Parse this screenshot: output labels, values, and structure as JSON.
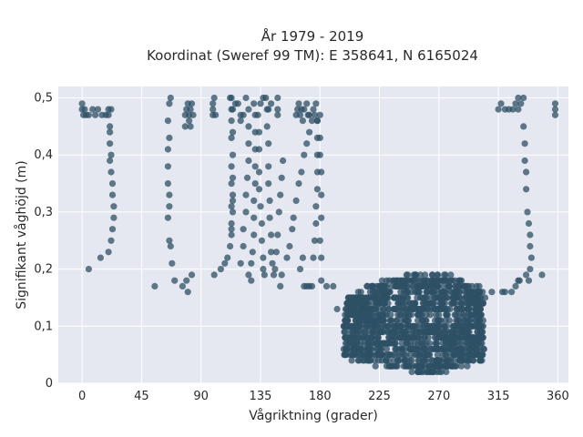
{
  "chart_data": {
    "type": "scatter",
    "title_line1": "År 1979 - 2019",
    "title_line2": "Koordinat (Sweref 99 TM): E 358641, N 6165024",
    "xlabel": "Vågriktning (grader)",
    "ylabel": "Signifikant våghöjd (m)",
    "xlim": [
      -18,
      368
    ],
    "ylim": [
      0,
      0.52
    ],
    "x_ticks": [
      0,
      45,
      90,
      135,
      180,
      225,
      270,
      315,
      360
    ],
    "x_tick_labels": [
      "0",
      "45",
      "90",
      "135",
      "180",
      "225",
      "270",
      "315",
      "360"
    ],
    "y_ticks": [
      0,
      0.1,
      0.2,
      0.3,
      0.4,
      0.5
    ],
    "y_tick_labels": [
      "0",
      "0,1",
      "0,2",
      "0,3",
      "0,4",
      "0,5"
    ],
    "grid": true,
    "legend": "none",
    "colors": {
      "marker": "#2e5066",
      "plot_background": "#e5e8f0",
      "grid": "#ffffff"
    },
    "series": [
      {
        "points": [
          [
            0,
            0.49
          ],
          [
            0,
            0.48
          ],
          [
            1,
            0.47
          ],
          [
            2,
            0.48
          ],
          [
            3,
            0.47
          ],
          [
            5,
            0.47
          ],
          [
            8,
            0.48
          ],
          [
            10,
            0.47
          ],
          [
            12,
            0.48
          ],
          [
            15,
            0.47
          ],
          [
            18,
            0.47
          ],
          [
            20,
            0.48
          ],
          [
            22,
            0.48
          ],
          [
            20,
            0.47
          ],
          [
            21,
            0.45
          ],
          [
            21,
            0.44
          ],
          [
            21,
            0.42
          ],
          [
            22,
            0.4
          ],
          [
            21,
            0.39
          ],
          [
            22,
            0.37
          ],
          [
            23,
            0.35
          ],
          [
            23,
            0.33
          ],
          [
            24,
            0.31
          ],
          [
            24,
            0.29
          ],
          [
            23,
            0.27
          ],
          [
            22,
            0.25
          ],
          [
            20,
            0.23
          ],
          [
            14,
            0.22
          ],
          [
            5,
            0.2
          ],
          [
            55,
            0.17
          ],
          [
            65,
            0.29
          ],
          [
            66,
            0.31
          ],
          [
            66,
            0.33
          ],
          [
            65,
            0.35
          ],
          [
            65,
            0.38
          ],
          [
            65,
            0.41
          ],
          [
            66,
            0.43
          ],
          [
            65,
            0.46
          ],
          [
            66,
            0.49
          ],
          [
            67,
            0.5
          ],
          [
            66,
            0.25
          ],
          [
            67,
            0.24
          ],
          [
            68,
            0.21
          ],
          [
            70,
            0.18
          ],
          [
            76,
            0.17
          ],
          [
            79,
            0.18
          ],
          [
            80,
            0.16
          ],
          [
            83,
            0.19
          ],
          [
            78,
            0.45
          ],
          [
            78,
            0.47
          ],
          [
            79,
            0.48
          ],
          [
            80,
            0.49
          ],
          [
            81,
            0.47
          ],
          [
            82,
            0.48
          ],
          [
            83,
            0.49
          ],
          [
            84,
            0.47
          ],
          [
            81,
            0.46
          ],
          [
            82,
            0.45
          ],
          [
            99,
            0.47
          ],
          [
            99,
            0.48
          ],
          [
            99,
            0.49
          ],
          [
            100,
            0.5
          ],
          [
            101,
            0.47
          ],
          [
            100,
            0.19
          ],
          [
            105,
            0.2
          ],
          [
            108,
            0.21
          ],
          [
            110,
            0.22
          ],
          [
            112,
            0.5
          ],
          [
            116,
            0.49
          ],
          [
            113,
            0.48
          ],
          [
            112,
            0.24
          ],
          [
            113,
            0.26
          ],
          [
            113,
            0.27
          ],
          [
            113,
            0.28
          ],
          [
            114,
            0.3
          ],
          [
            113,
            0.31
          ],
          [
            114,
            0.32
          ],
          [
            114,
            0.33
          ],
          [
            113,
            0.35
          ],
          [
            114,
            0.36
          ],
          [
            113,
            0.38
          ],
          [
            114,
            0.4
          ],
          [
            113,
            0.43
          ],
          [
            114,
            0.44
          ],
          [
            113,
            0.46
          ],
          [
            114,
            0.48
          ],
          [
            113,
            0.5
          ],
          [
            118,
            0.49
          ],
          [
            120,
            0.47
          ],
          [
            120,
            0.21
          ],
          [
            122,
            0.24
          ],
          [
            122,
            0.27
          ],
          [
            124,
            0.3
          ],
          [
            124,
            0.33
          ],
          [
            125,
            0.36
          ],
          [
            126,
            0.39
          ],
          [
            126,
            0.42
          ],
          [
            126,
            0.45
          ],
          [
            126,
            0.48
          ],
          [
            124,
            0.5
          ],
          [
            126,
            0.19
          ],
          [
            128,
            0.18
          ],
          [
            128,
            0.21
          ],
          [
            129,
            0.23
          ],
          [
            130,
            0.26
          ],
          [
            130,
            0.29
          ],
          [
            130,
            0.32
          ],
          [
            131,
            0.35
          ],
          [
            131,
            0.38
          ],
          [
            131,
            0.41
          ],
          [
            131,
            0.44
          ],
          [
            131,
            0.47
          ],
          [
            130,
            0.49
          ],
          [
            133,
            0.47
          ],
          [
            134,
            0.44
          ],
          [
            134,
            0.41
          ],
          [
            134,
            0.37
          ],
          [
            134,
            0.34
          ],
          [
            135,
            0.31
          ],
          [
            136,
            0.28
          ],
          [
            136,
            0.25
          ],
          [
            137,
            0.22
          ],
          [
            137,
            0.2
          ],
          [
            138,
            0.19
          ],
          [
            139,
            0.5
          ],
          [
            140,
            0.48
          ],
          [
            140,
            0.45
          ],
          [
            141,
            0.42
          ],
          [
            141,
            0.38
          ],
          [
            141,
            0.35
          ],
          [
            142,
            0.32
          ],
          [
            142,
            0.29
          ],
          [
            143,
            0.26
          ],
          [
            143,
            0.23
          ],
          [
            144,
            0.21
          ],
          [
            145,
            0.19
          ],
          [
            146,
            0.2
          ],
          [
            147,
            0.23
          ],
          [
            148,
            0.26
          ],
          [
            149,
            0.3
          ],
          [
            150,
            0.33
          ],
          [
            151,
            0.36
          ],
          [
            152,
            0.39
          ],
          [
            148,
            0.5
          ],
          [
            148,
            0.48
          ],
          [
            148,
            0.47
          ],
          [
            143,
            0.49
          ],
          [
            141,
            0.48
          ],
          [
            137,
            0.5
          ],
          [
            135,
            0.49
          ],
          [
            120,
            0.46
          ],
          [
            122,
            0.47
          ],
          [
            150,
            0.17
          ],
          [
            151,
            0.19
          ],
          [
            155,
            0.22
          ],
          [
            157,
            0.24
          ],
          [
            159,
            0.27
          ],
          [
            160,
            0.29
          ],
          [
            162,
            0.32
          ],
          [
            164,
            0.35
          ],
          [
            166,
            0.37
          ],
          [
            168,
            0.4
          ],
          [
            170,
            0.42
          ],
          [
            172,
            0.44
          ],
          [
            171,
            0.47
          ],
          [
            170,
            0.49
          ],
          [
            162,
            0.47
          ],
          [
            163,
            0.48
          ],
          [
            164,
            0.49
          ],
          [
            165,
            0.47
          ],
          [
            166,
            0.48
          ],
          [
            167,
            0.46
          ],
          [
            168,
            0.48
          ],
          [
            172,
            0.47
          ],
          [
            174,
            0.46
          ],
          [
            176,
            0.47
          ],
          [
            178,
            0.46
          ],
          [
            175,
            0.48
          ],
          [
            177,
            0.49
          ],
          [
            165,
            0.2
          ],
          [
            167,
            0.22
          ],
          [
            168,
            0.17
          ],
          [
            170,
            0.17
          ],
          [
            172,
            0.17
          ],
          [
            174,
            0.17
          ],
          [
            175,
            0.22
          ],
          [
            176,
            0.25
          ],
          [
            177,
            0.28
          ],
          [
            177,
            0.31
          ],
          [
            178,
            0.34
          ],
          [
            178,
            0.37
          ],
          [
            178,
            0.4
          ],
          [
            178,
            0.43
          ],
          [
            178,
            0.46
          ],
          [
            180,
            0.47
          ],
          [
            180,
            0.43
          ],
          [
            180,
            0.4
          ],
          [
            181,
            0.37
          ],
          [
            181,
            0.33
          ],
          [
            181,
            0.29
          ],
          [
            180,
            0.25
          ],
          [
            181,
            0.22
          ],
          [
            181,
            0.18
          ],
          [
            185,
            0.17
          ],
          [
            190,
            0.17
          ],
          [
            193,
            0.13
          ],
          [
            200,
            0.13
          ],
          [
            205,
            0.15
          ],
          [
            208,
            0.11
          ],
          [
            210,
            0.1
          ],
          [
            315,
            0.48
          ],
          [
            317,
            0.49
          ],
          [
            320,
            0.48
          ],
          [
            323,
            0.48
          ],
          [
            326,
            0.48
          ],
          [
            328,
            0.49
          ],
          [
            330,
            0.5
          ],
          [
            332,
            0.49
          ],
          [
            334,
            0.5
          ],
          [
            330,
            0.48
          ],
          [
            334,
            0.45
          ],
          [
            335,
            0.42
          ],
          [
            335,
            0.39
          ],
          [
            336,
            0.37
          ],
          [
            336,
            0.34
          ],
          [
            337,
            0.3
          ],
          [
            338,
            0.28
          ],
          [
            339,
            0.26
          ],
          [
            339,
            0.24
          ],
          [
            340,
            0.22
          ],
          [
            339,
            0.2
          ],
          [
            336,
            0.19
          ],
          [
            331,
            0.18
          ],
          [
            328,
            0.17
          ],
          [
            330,
            0.18
          ],
          [
            338,
            0.18
          ],
          [
            348,
            0.19
          ],
          [
            358,
            0.47
          ],
          [
            358,
            0.48
          ],
          [
            358,
            0.49
          ],
          [
            320,
            0.16
          ],
          [
            325,
            0.16
          ],
          [
            318,
            0.16
          ],
          [
            310,
            0.16
          ],
          [
            305,
            0.15
          ],
          [
            300,
            0.13
          ],
          [
            296,
            0.12
          ],
          [
            292,
            0.11
          ],
          [
            290,
            0.1
          ],
          [
            286,
            0.09
          ],
          [
            280,
            0.08
          ],
          [
            275,
            0.07
          ],
          [
            270,
            0.06
          ]
        ]
      }
    ],
    "cluster_region": {
      "x_range": [
        198,
        304
      ],
      "y_range": [
        0.02,
        0.19
      ],
      "center": [
        258,
        0.1
      ]
    }
  }
}
